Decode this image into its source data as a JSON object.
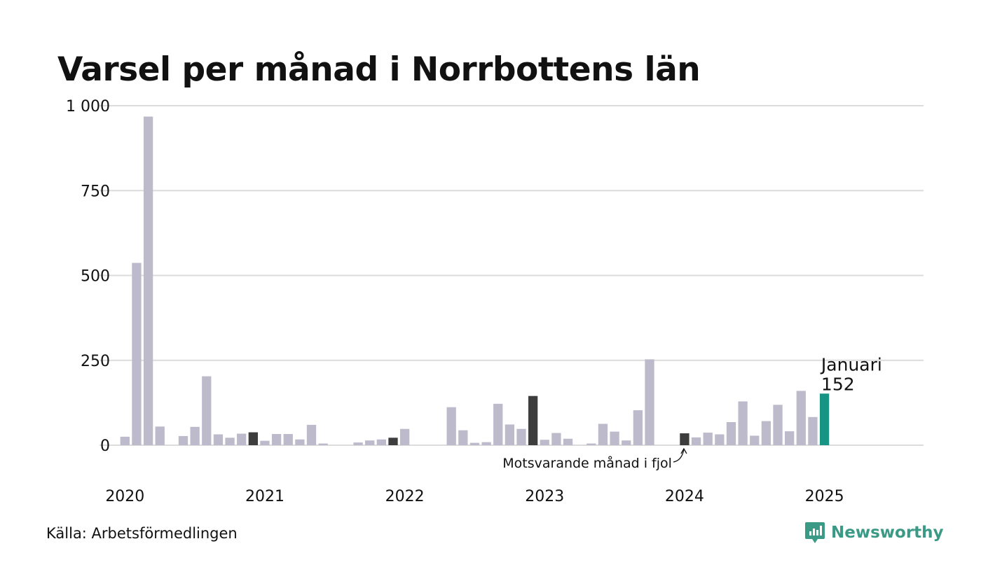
{
  "title": "Varsel per månad i Norrbottens län",
  "source": "Källa: Arbetsförmedlingen",
  "brand": "Newsworthy",
  "colors": {
    "bar": "#bdbbcb",
    "previous_year": "#3d3d3d",
    "current": "#179484",
    "grid": "#dcdcdc",
    "brand": "#3a9a86"
  },
  "chart_data": {
    "type": "bar",
    "ylim": [
      0,
      1000
    ],
    "y_ticks": [
      {
        "value": 0,
        "label": "0"
      },
      {
        "value": 250,
        "label": "250"
      },
      {
        "value": 500,
        "label": "500"
      },
      {
        "value": 750,
        "label": "750"
      },
      {
        "value": 1000,
        "label": "1 000"
      }
    ],
    "x_ticks": [
      {
        "index": 0,
        "label": "2020"
      },
      {
        "index": 12,
        "label": "2021"
      },
      {
        "index": 24,
        "label": "2022"
      },
      {
        "index": 36,
        "label": "2023"
      },
      {
        "index": 48,
        "label": "2024"
      },
      {
        "index": 60,
        "label": "2025"
      }
    ],
    "n_slots": 69,
    "values": [
      25,
      537,
      968,
      55,
      0,
      27,
      54,
      203,
      32,
      22,
      34,
      38,
      13,
      33,
      33,
      17,
      60,
      5,
      0,
      0,
      8,
      14,
      17,
      22,
      48,
      0,
      0,
      0,
      112,
      44,
      7,
      9,
      122,
      61,
      48,
      145,
      16,
      36,
      19,
      0,
      5,
      63,
      40,
      14,
      103,
      253,
      0,
      0,
      35,
      23,
      37,
      32,
      68,
      129,
      28,
      71,
      119,
      41,
      160,
      83,
      152
    ],
    "highlight_previous": [
      11,
      23,
      35,
      48
    ],
    "highlight_current": 60,
    "current_label_month": "Januari",
    "current_label_value": "152",
    "annotation": "Motsvarande månad i fjol"
  }
}
